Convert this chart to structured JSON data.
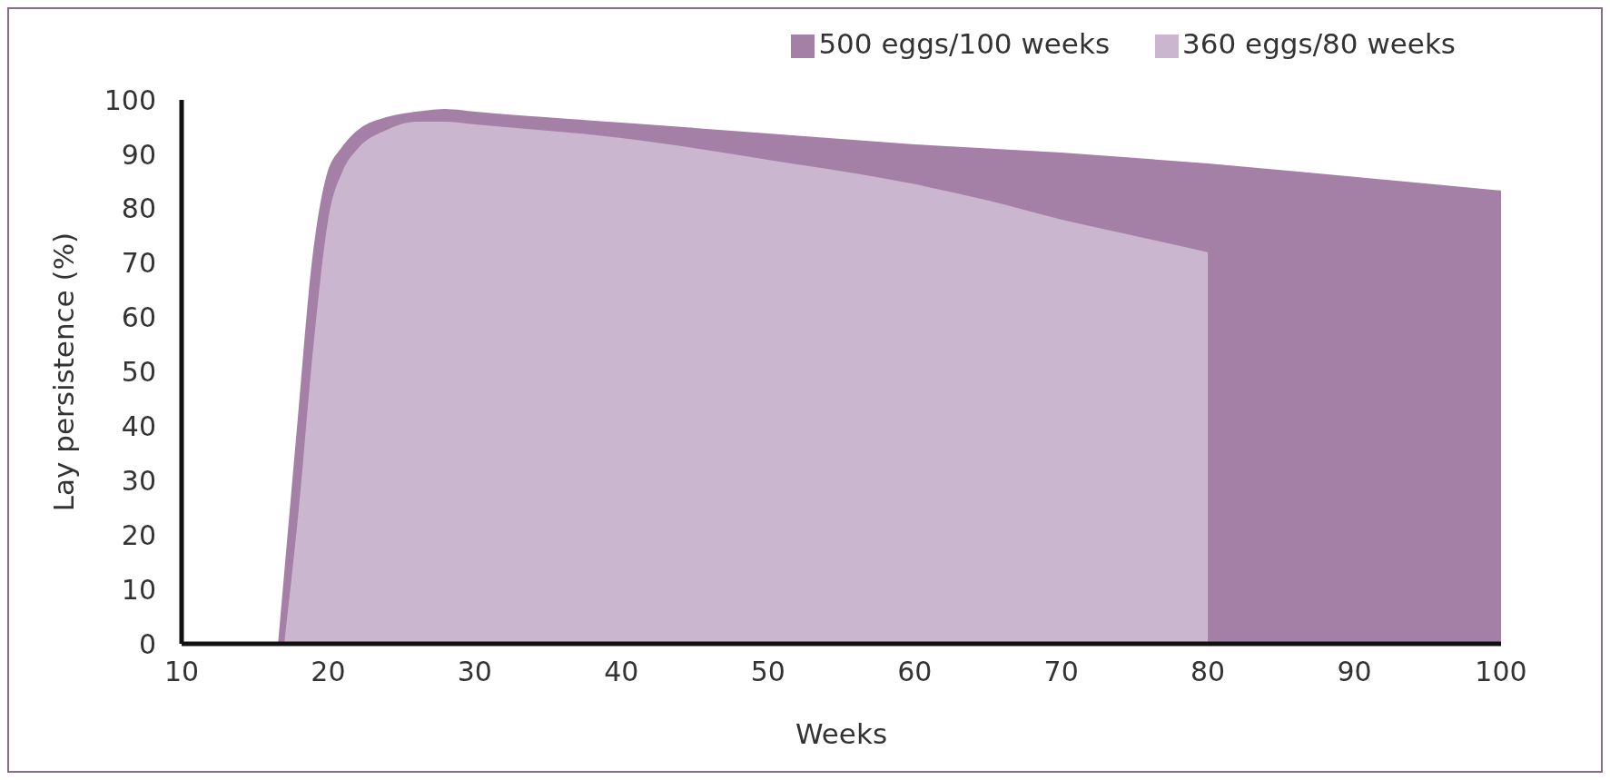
{
  "chart_data": {
    "type": "area",
    "xlabel": "Weeks",
    "ylabel": "Lay persistence (%)",
    "xlim": [
      10,
      100
    ],
    "xticks": [
      10,
      20,
      30,
      40,
      50,
      60,
      70,
      80,
      90,
      100
    ],
    "ylim": [
      0,
      100
    ],
    "yticks": [
      0,
      10,
      20,
      30,
      40,
      50,
      60,
      70,
      80,
      90,
      100
    ],
    "grid": false,
    "legend": "top right",
    "series": [
      {
        "name": "500 eggs/100 weeks",
        "color": "#a580a6",
        "x": [
          16.7,
          18,
          19,
          20,
          21,
          22,
          24,
          26,
          28,
          30,
          40,
          50,
          60,
          70,
          80,
          90,
          100
        ],
        "values": [
          0,
          40,
          70,
          86,
          91,
          94,
          96.5,
          97.5,
          98,
          97.5,
          95.5,
          93.5,
          91.5,
          90,
          88,
          85.5,
          83
        ]
      },
      {
        "name": "360 eggs/80 weeks",
        "color": "#cbb6cf",
        "x": [
          17,
          18,
          19,
          20,
          21,
          22,
          24,
          26,
          28,
          30,
          40,
          50,
          60,
          65,
          70,
          75,
          80
        ],
        "values": [
          0,
          25,
          55,
          78,
          87,
          91,
          94.5,
          96,
          96,
          95.5,
          93,
          89,
          84.5,
          81.5,
          78,
          75,
          72
        ]
      }
    ]
  }
}
